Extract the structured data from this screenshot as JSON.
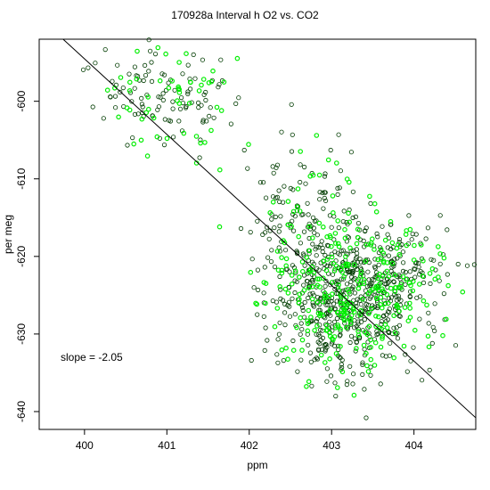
{
  "chart_data": {
    "type": "scatter",
    "title": "170928a   Interval h O2 vs. CO2",
    "xlabel": "ppm",
    "ylabel": "per meg",
    "xlim": [
      399.45,
      404.75
    ],
    "ylim": [
      -642.3,
      -592.0
    ],
    "x_ticks": [
      400,
      401,
      402,
      403,
      404
    ],
    "x_tick_labels": [
      "400",
      "401",
      "402",
      "403",
      "404"
    ],
    "y_ticks": [
      -600,
      -610,
      -620,
      -630,
      -640
    ],
    "y_tick_labels": [
      "-600",
      "-610",
      "-620",
      "-630",
      "-640"
    ],
    "annotation": "slope =  -2.05",
    "fit_line": {
      "slope": -2.05,
      "x1": 399.74,
      "y1": -592.0,
      "x2": 404.75,
      "y2": -640.8
    },
    "grid": false,
    "marker": "open-circle",
    "point_count_dark": 820,
    "point_count_green": 380,
    "colors": {
      "series_dark": "#003c00",
      "series_green": "#00ee00",
      "line": "#000000"
    },
    "clusters": [
      {
        "cx": 400.9,
        "cy": -598.5,
        "sx": 0.38,
        "sy": 3.2,
        "n": 120,
        "green_frac": 0.32
      },
      {
        "cx": 401.25,
        "cy": -602.0,
        "sx": 0.25,
        "sy": 3.0,
        "n": 40,
        "green_frac": 0.25
      },
      {
        "cx": 402.7,
        "cy": -614.0,
        "sx": 0.35,
        "sy": 5.0,
        "n": 150,
        "green_frac": 0.28
      },
      {
        "cx": 403.2,
        "cy": -625.5,
        "sx": 0.45,
        "sy": 5.0,
        "n": 760,
        "green_frac": 0.32
      },
      {
        "cx": 403.9,
        "cy": -623.0,
        "sx": 0.35,
        "sy": 4.0,
        "n": 130,
        "green_frac": 0.3
      }
    ],
    "series": [
      {
        "values_description": ""
      }
    ]
  }
}
